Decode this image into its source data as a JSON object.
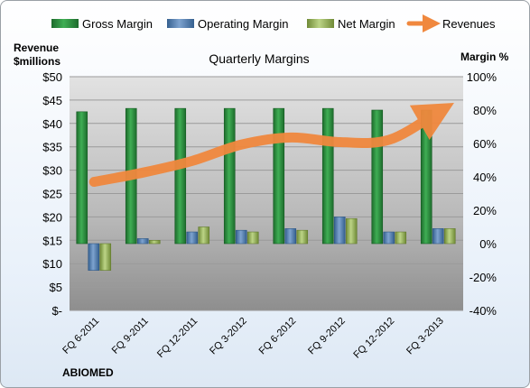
{
  "chart_data": {
    "type": "bar",
    "title": "Quarterly Margins",
    "company": "ABIOMED",
    "y_left_label": [
      "Revenue",
      "$millions"
    ],
    "y_right_label": "Margin %",
    "y_left_ticks": [
      "$-",
      "$5",
      "$10",
      "$15",
      "$20",
      "$25",
      "$30",
      "$35",
      "$40",
      "$45",
      "$50"
    ],
    "y_right_ticks": [
      "-40%",
      "-20%",
      "0%",
      "20%",
      "40%",
      "60%",
      "80%",
      "100%"
    ],
    "y_left_lim": [
      0,
      50
    ],
    "y_right_lim": [
      -40,
      100
    ],
    "categories": [
      "FQ 6-2011",
      "FQ 9-2011",
      "FQ 12-2011",
      "FQ 3-2012",
      "FQ 6-2012",
      "FQ 9-2012",
      "FQ 12-2012",
      "FQ 3-2013"
    ],
    "series": [
      {
        "name": "Gross Margin",
        "axis": "right",
        "color": "#2e8b3e",
        "values": [
          79,
          81,
          81,
          81,
          81,
          81,
          80,
          80
        ]
      },
      {
        "name": "Operating Margin",
        "axis": "right",
        "color": "#4f81bd",
        "values": [
          -16,
          3,
          7,
          8,
          9,
          16,
          7,
          9
        ]
      },
      {
        "name": "Net Margin",
        "axis": "right",
        "color": "#9bbb59",
        "values": [
          -16,
          2,
          10,
          7,
          8,
          15,
          7,
          9
        ]
      },
      {
        "name": "Revenues",
        "axis": "left",
        "type": "line",
        "color": "#f0883e",
        "values": [
          27.5,
          29.5,
          32,
          35.5,
          37,
          36,
          36.5,
          42.5
        ]
      }
    ],
    "legend_position": "top",
    "grid": true
  }
}
